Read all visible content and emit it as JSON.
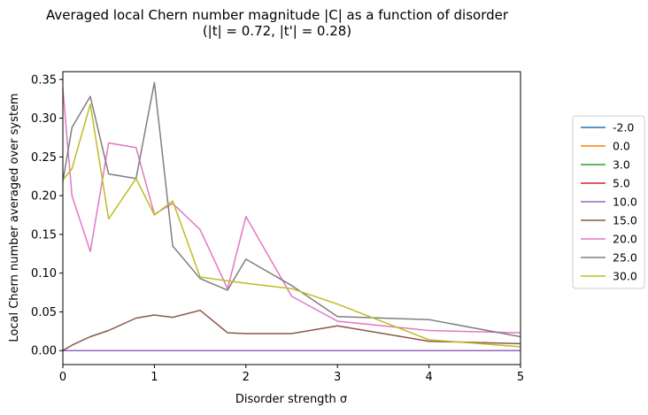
{
  "chart_data": {
    "type": "line",
    "title_line1": "Averaged local Chern number magnitude |C| as a function of disorder",
    "title_line2": "(|t| = 0.72, |t'| = 0.28)",
    "xlabel": "Disorder strength σ",
    "ylabel": "Local Chern number averaged over system",
    "xlim": [
      0,
      5
    ],
    "ylim": [
      -0.018,
      0.36
    ],
    "xticks": [
      0,
      1,
      2,
      3,
      4,
      5
    ],
    "xtick_labels": [
      "0",
      "1",
      "2",
      "3",
      "4",
      "5"
    ],
    "yticks": [
      0.0,
      0.05,
      0.1,
      0.15,
      0.2,
      0.25,
      0.3,
      0.35
    ],
    "ytick_labels": [
      "0.00",
      "0.05",
      "0.10",
      "0.15",
      "0.20",
      "0.25",
      "0.30",
      "0.35"
    ],
    "legend_position": "right",
    "series": [
      {
        "name": "-2.0",
        "color": "#1f77b4",
        "x": [
          0,
          0.1,
          0.3,
          0.5,
          0.8,
          1.0,
          1.2,
          1.5,
          1.8,
          2.0,
          2.5,
          3.0,
          4.0,
          5.0
        ],
        "y": [
          0,
          0,
          0,
          0,
          0,
          0,
          0,
          0,
          0,
          0,
          0,
          0,
          0,
          0
        ]
      },
      {
        "name": "0.0",
        "color": "#ff7f0e",
        "x": [
          0,
          0.1,
          0.3,
          0.5,
          0.8,
          1.0,
          1.2,
          1.5,
          1.8,
          2.0,
          2.5,
          3.0,
          4.0,
          5.0
        ],
        "y": [
          0,
          0,
          0,
          0,
          0,
          0,
          0,
          0,
          0,
          0,
          0,
          0,
          0,
          0
        ]
      },
      {
        "name": "3.0",
        "color": "#2ca02c",
        "x": [
          0,
          0.1,
          0.3,
          0.5,
          0.8,
          1.0,
          1.2,
          1.5,
          1.8,
          2.0,
          2.5,
          3.0,
          4.0,
          5.0
        ],
        "y": [
          0,
          0,
          0,
          0,
          0,
          0,
          0,
          0,
          0,
          0,
          0,
          0,
          0,
          0
        ]
      },
      {
        "name": "5.0",
        "color": "#d62728",
        "x": [
          0,
          0.1,
          0.3,
          0.5,
          0.8,
          1.0,
          1.2,
          1.5,
          1.8,
          2.0,
          2.5,
          3.0,
          4.0,
          5.0
        ],
        "y": [
          0,
          0,
          0,
          0,
          0,
          0,
          0,
          0,
          0,
          0,
          0,
          0,
          0,
          0
        ]
      },
      {
        "name": "10.0",
        "color": "#9467bd",
        "x": [
          0,
          0.1,
          0.3,
          0.5,
          0.8,
          1.0,
          1.2,
          1.5,
          1.8,
          2.0,
          2.5,
          3.0,
          4.0,
          5.0
        ],
        "y": [
          0,
          0,
          0,
          0,
          0,
          0,
          0,
          0,
          0,
          0,
          0,
          0,
          0,
          0
        ]
      },
      {
        "name": "15.0",
        "color": "#8c564b",
        "x": [
          0,
          0.1,
          0.3,
          0.5,
          0.8,
          1.0,
          1.2,
          1.5,
          1.8,
          2.0,
          2.5,
          3.0,
          4.0,
          5.0
        ],
        "y": [
          0,
          0.007,
          0.018,
          0.026,
          0.042,
          0.046,
          0.043,
          0.052,
          0.023,
          0.022,
          0.022,
          0.032,
          0.012,
          0.009
        ]
      },
      {
        "name": "20.0",
        "color": "#e377c2",
        "x": [
          0,
          0.1,
          0.3,
          0.5,
          0.8,
          1.0,
          1.2,
          1.5,
          1.8,
          2.0,
          2.5,
          3.0,
          4.0,
          5.0
        ],
        "y": [
          0.338,
          0.2,
          0.128,
          0.268,
          0.262,
          0.176,
          0.19,
          0.156,
          0.08,
          0.173,
          0.07,
          0.038,
          0.026,
          0.023
        ]
      },
      {
        "name": "25.0",
        "color": "#7f7f7f",
        "x": [
          0,
          0.1,
          0.3,
          0.5,
          0.8,
          1.0,
          1.2,
          1.5,
          1.8,
          2.0,
          2.5,
          3.0,
          4.0,
          5.0
        ],
        "y": [
          0.218,
          0.288,
          0.328,
          0.228,
          0.222,
          0.346,
          0.135,
          0.093,
          0.078,
          0.118,
          0.084,
          0.044,
          0.04,
          0.018
        ]
      },
      {
        "name": "30.0",
        "color": "#bcbd22",
        "x": [
          0,
          0.1,
          0.3,
          0.5,
          0.8,
          1.0,
          1.2,
          1.5,
          1.8,
          2.0,
          2.5,
          3.0,
          4.0,
          5.0
        ],
        "y": [
          0.22,
          0.235,
          0.318,
          0.17,
          0.222,
          0.175,
          0.193,
          0.095,
          0.09,
          0.087,
          0.08,
          0.06,
          0.014,
          0.005
        ]
      }
    ]
  }
}
